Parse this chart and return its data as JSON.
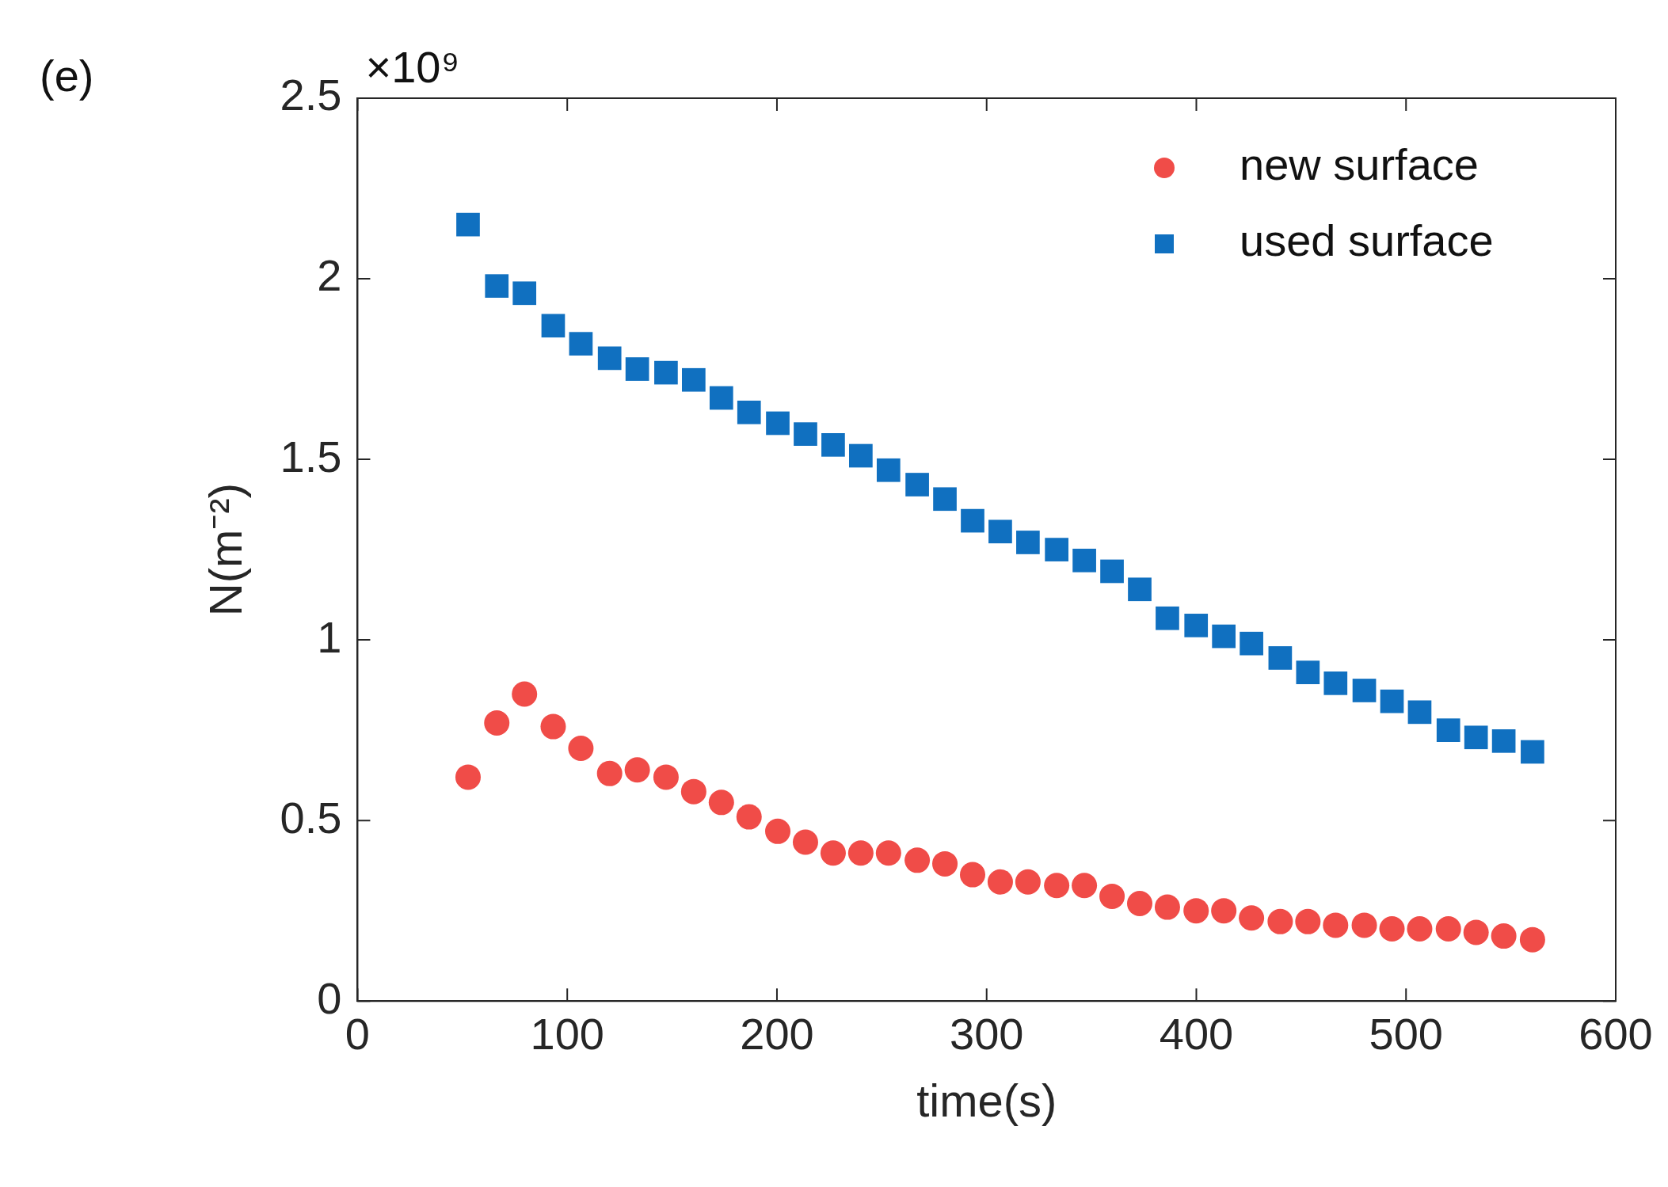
{
  "chart_data": {
    "type": "scatter",
    "xlabel": "time(s)",
    "ylabel": "N(m⁻²)",
    "annotations": [
      "(e)",
      "×10⁹"
    ],
    "x": [
      52.7,
      66.4,
      79.6,
      93.3,
      106.5,
      120.2,
      133.4,
      147.1,
      160.3,
      173.5,
      186.7,
      200.4,
      213.6,
      226.8,
      240,
      253.2,
      266.9,
      280.1,
      293.3,
      306.5,
      319.7,
      333.4,
      346.6,
      359.8,
      373,
      386.2,
      399.9,
      413.1,
      426.3,
      440,
      453.2,
      466.4,
      480.1,
      493.3,
      506.5,
      520.2,
      533.4,
      546.6,
      560.3
    ],
    "series": [
      {
        "name": "new surface",
        "color": "#f04c48",
        "marker": "circle",
        "values": [
          0.62,
          0.77,
          0.85,
          0.76,
          0.7,
          0.63,
          0.64,
          0.62,
          0.58,
          0.55,
          0.51,
          0.47,
          0.44,
          0.41,
          0.41,
          0.41,
          0.39,
          0.38,
          0.35,
          0.33,
          0.33,
          0.32,
          0.32,
          0.29,
          0.27,
          0.26,
          0.25,
          0.25,
          0.23,
          0.22,
          0.22,
          0.21,
          0.21,
          0.2,
          0.2,
          0.2,
          0.19,
          0.18,
          0.17
        ]
      },
      {
        "name": "used surface",
        "color": "#1070c0",
        "marker": "square",
        "values": [
          2.15,
          1.98,
          1.96,
          1.87,
          1.82,
          1.78,
          1.75,
          1.74,
          1.72,
          1.67,
          1.63,
          1.6,
          1.57,
          1.54,
          1.51,
          1.47,
          1.43,
          1.39,
          1.33,
          1.3,
          1.27,
          1.25,
          1.22,
          1.19,
          1.14,
          1.06,
          1.04,
          1.01,
          0.99,
          0.95,
          0.91,
          0.88,
          0.86,
          0.83,
          0.8,
          0.75,
          0.73,
          0.72,
          0.69
        ]
      }
    ],
    "xlim": [
      0,
      600
    ],
    "xticks": [
      0,
      100,
      200,
      300,
      400,
      500,
      600
    ],
    "ylim": [
      0,
      2.5
    ],
    "yticks": [
      0,
      0.5,
      1,
      1.5,
      2,
      2.5
    ],
    "legend": "top right",
    "grid": false
  }
}
